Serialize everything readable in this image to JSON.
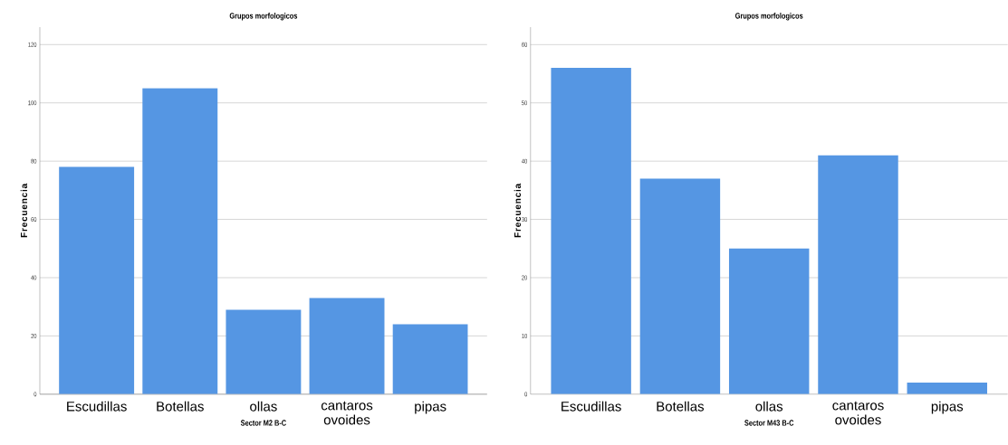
{
  "chart_data": [
    {
      "type": "bar",
      "title": "Grupos morfologicos",
      "xlabel": "Sector M2 B-C",
      "ylabel": "Frecuencia",
      "categories": [
        "Escudillas",
        "Botellas",
        "ollas",
        "cantaros ovoides",
        "pipas"
      ],
      "values": [
        78,
        105,
        29,
        33,
        24
      ],
      "color": "#5596e3",
      "ylim": [
        0,
        126
      ],
      "yticks": [
        0,
        20,
        40,
        60,
        80,
        100,
        120
      ],
      "grid": "y"
    },
    {
      "type": "bar",
      "title": "Grupos morfologicos",
      "xlabel": "Sector M43 B-C",
      "ylabel": "Frecuencia",
      "categories": [
        "Escudillas",
        "Botellas",
        "ollas",
        "cantaros ovoides",
        "pipas"
      ],
      "values": [
        56,
        37,
        25,
        41,
        2
      ],
      "color": "#5596e3",
      "ylim": [
        0,
        63
      ],
      "yticks": [
        0,
        10,
        20,
        30,
        40,
        50,
        60
      ],
      "grid": "y"
    }
  ]
}
